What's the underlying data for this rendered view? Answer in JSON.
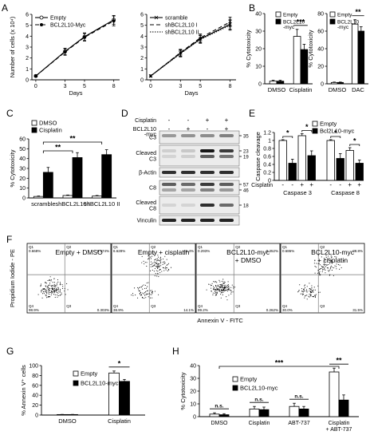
{
  "figure": {
    "panel_letters": [
      "A",
      "B",
      "C",
      "D",
      "E",
      "F",
      "G",
      "H"
    ]
  },
  "chart_data": [
    {
      "id": "A1",
      "type": "line",
      "ylabel": "Number of cells (x 10⁴)",
      "xlabel": "Days",
      "x": [
        0,
        3,
        5,
        8
      ],
      "xticks": [
        "0",
        "3",
        "5",
        "8"
      ],
      "ylim": [
        0,
        6
      ],
      "yticks": [
        0,
        1,
        2,
        3,
        4,
        5,
        6
      ],
      "series": [
        {
          "name": "Empty",
          "marker": "circle-open",
          "dash": "",
          "values": [
            0.35,
            2.6,
            3.95,
            5.5
          ],
          "err": [
            0.1,
            0.3,
            0.35,
            0.4
          ]
        },
        {
          "name": "BCL2L10-Myc",
          "marker": "circle-filled",
          "dash": "5,3",
          "values": [
            0.35,
            2.55,
            3.9,
            5.4
          ],
          "err": [
            0.1,
            0.3,
            0.35,
            0.45
          ]
        }
      ]
    },
    {
      "id": "A2",
      "type": "line",
      "xlabel": "Days",
      "x": [
        0,
        3,
        5,
        8
      ],
      "xticks": [
        "0",
        "3",
        "5",
        "8"
      ],
      "ylim": [
        0,
        6
      ],
      "yticks": [
        0,
        1,
        2,
        3,
        4,
        5,
        6
      ],
      "series": [
        {
          "name": "scramble",
          "marker": "x",
          "dash": "",
          "values": [
            0.35,
            2.45,
            3.75,
            5.1
          ],
          "err": [
            0.1,
            0.3,
            0.35,
            0.45
          ]
        },
        {
          "name": "shBCL2L10 I",
          "marker": "none",
          "dash": "5,3",
          "values": [
            0.35,
            2.5,
            3.85,
            5.3
          ],
          "err": [
            0.1,
            0.3,
            0.35,
            0.45
          ]
        },
        {
          "name": "shBCL2L10 II",
          "marker": "none",
          "dash": "1.5,1.5",
          "values": [
            0.35,
            2.4,
            3.7,
            5.0
          ],
          "err": [
            0.1,
            0.3,
            0.35,
            0.45
          ]
        }
      ]
    },
    {
      "id": "B1",
      "type": "bar",
      "ylabel": "% Cytotoxicity",
      "categories": [
        "DMSO",
        "Cisplatin"
      ],
      "ylim": [
        0,
        40
      ],
      "yticks": [
        0,
        10,
        20,
        30,
        40
      ],
      "series": [
        {
          "name": "Empty",
          "color": "#ffffff",
          "values": [
            1.5,
            27
          ],
          "err": [
            0.5,
            4
          ]
        },
        {
          "name": "BCL2L10\n-myc",
          "color": "#000000",
          "values": [
            1.5,
            19.5
          ],
          "err": [
            0.5,
            3
          ]
        }
      ],
      "significance": [
        {
          "label": "***",
          "category": 1
        }
      ]
    },
    {
      "id": "B2",
      "type": "bar",
      "ylabel": "% Cytotoxicity",
      "categories": [
        "DMSO",
        "DAC"
      ],
      "ylim": [
        0,
        80
      ],
      "yticks": [
        0,
        20,
        40,
        60,
        80
      ],
      "series": [
        {
          "name": "Empty",
          "color": "#ffffff",
          "values": [
            1.5,
            68
          ],
          "err": [
            0.5,
            5
          ]
        },
        {
          "name": "BCL2L10\n-myc",
          "color": "#000000",
          "values": [
            1.5,
            60
          ],
          "err": [
            0.5,
            5
          ]
        }
      ],
      "significance": [
        {
          "label": "**",
          "category": 1
        }
      ]
    },
    {
      "id": "C",
      "type": "bar",
      "ylabel": "% Cytotoxicity",
      "categories": [
        "scramble",
        "shBCL2L10 I",
        "shBCL2L10 II"
      ],
      "ylim": [
        0,
        60
      ],
      "yticks": [
        0,
        10,
        20,
        30,
        40,
        50,
        60
      ],
      "series": [
        {
          "name": "DMSO",
          "color": "#ffffff",
          "values": [
            1.5,
            2.5,
            2.0
          ],
          "err": [
            0.5,
            0.5,
            0.5
          ]
        },
        {
          "name": "Cisplatin",
          "color": "#000000",
          "values": [
            26,
            41,
            44
          ],
          "err": [
            5,
            5,
            5
          ]
        }
      ],
      "significance": [
        {
          "label": "**",
          "from": 0,
          "to": 1
        },
        {
          "label": "**",
          "from": 0,
          "to": 2
        }
      ]
    },
    {
      "id": "E",
      "type": "bar",
      "ylabel": "Caspase cleavage",
      "groups": [
        "Caspase 3",
        "Caspase 8"
      ],
      "cisplatin_signs": [
        "-",
        "-",
        "+",
        "+",
        "-",
        "-",
        "+",
        "+"
      ],
      "cisplatin_label": "Cisplatin",
      "ylim": [
        0,
        1.2
      ],
      "yticks": [
        0,
        0.2,
        0.4,
        0.6,
        0.8,
        1.0,
        1.2
      ],
      "series": [
        {
          "name": "Empty",
          "color": "#ffffff"
        },
        {
          "name": "Bcl2L10-myc",
          "color": "#000000"
        }
      ],
      "bars": [
        {
          "group": 0,
          "series": 0,
          "value": 1.0,
          "err": 0.02
        },
        {
          "group": 0,
          "series": 1,
          "value": 0.43,
          "err": 0.1
        },
        {
          "group": 0,
          "series": 0,
          "value": 1.12,
          "err": 0.05
        },
        {
          "group": 0,
          "series": 1,
          "value": 0.62,
          "err": 0.12
        },
        {
          "group": 1,
          "series": 0,
          "value": 1.0,
          "err": 0.02
        },
        {
          "group": 1,
          "series": 1,
          "value": 0.55,
          "err": 0.12
        },
        {
          "group": 1,
          "series": 0,
          "value": 0.75,
          "err": 0.07
        },
        {
          "group": 1,
          "series": 1,
          "value": 0.43,
          "err": 0.08
        }
      ],
      "significance": [
        {
          "label": "*",
          "from": 0,
          "to": 1
        },
        {
          "label": "*",
          "from": 2,
          "to": 3
        },
        {
          "label": "*",
          "from": 4,
          "to": 5
        },
        {
          "label": "*",
          "from": 6,
          "to": 7
        }
      ]
    },
    {
      "id": "G",
      "type": "bar",
      "ylabel": "% Annexin V⁺ cells",
      "categories": [
        "DMSO",
        "Cisplatin"
      ],
      "ylim": [
        0,
        100
      ],
      "yticks": [
        0,
        20,
        40,
        60,
        80,
        100
      ],
      "series": [
        {
          "name": "Empty",
          "color": "#ffffff",
          "values": [
            1.0,
            85
          ],
          "err": [
            0.3,
            4
          ]
        },
        {
          "name": "BCL2L10-myc",
          "color": "#000000",
          "values": [
            1.0,
            68
          ],
          "err": [
            0.3,
            4
          ]
        }
      ],
      "significance": [
        {
          "label": "*",
          "category": 1
        }
      ]
    },
    {
      "id": "H",
      "type": "bar",
      "ylabel": "% Cytotoxicity",
      "categories": [
        "DMSO",
        "Cisplatin",
        "ABT-737",
        "Cisplatin\n+ ABT-737"
      ],
      "ylim": [
        0,
        40
      ],
      "yticks": [
        0,
        10,
        20,
        30,
        40
      ],
      "series": [
        {
          "name": "Empty",
          "color": "#ffffff",
          "values": [
            2,
            6,
            8,
            35
          ],
          "err": [
            1,
            2,
            2.5,
            3
          ]
        },
        {
          "name": "BCL2L10-myc",
          "color": "#000000",
          "values": [
            1.5,
            5.5,
            6,
            13
          ],
          "err": [
            0.8,
            2,
            2,
            4
          ]
        }
      ],
      "significance": [
        {
          "label": "n.s.",
          "category": 0
        },
        {
          "label": "n.s.",
          "category": 1
        },
        {
          "label": "n.s.",
          "category": 2
        },
        {
          "label": "**",
          "category": 3
        },
        {
          "label": "***",
          "from": 0,
          "to": 3
        }
      ]
    }
  ],
  "flow": {
    "ylabel": "Propidium Iodide - PE",
    "xlabel": "Annexin V - FITC",
    "panels": [
      {
        "title": [
          "Empty + DMSO"
        ],
        "q1": "0.668%",
        "q2": "0.174%",
        "q3": "0.303%",
        "q4": "98.9%"
      },
      {
        "title": [
          "Empty + cisplatin"
        ],
        "q1": "6.628%",
        "q2": "46.4%",
        "q3": "14.1%",
        "q4": "38.9%"
      },
      {
        "title": [
          "BCL2L10-myc",
          "+ DMSO"
        ],
        "q1": "0.293%",
        "q2": "0.352%",
        "q3": "0.262%",
        "q4": "99.2%"
      },
      {
        "title": [
          "BCL2L10-myc",
          "+ cisplatin"
        ],
        "q1": "0.686%",
        "q2": "38.8%",
        "q3": "31.5%",
        "q4": "30.0%"
      }
    ]
  },
  "blot": {
    "conditions": [
      {
        "label": "Cisplatin",
        "signs": [
          "-",
          "-",
          "+",
          "+"
        ]
      },
      {
        "label": "BCL2L10\n-myc",
        "signs": [
          "-",
          "+",
          "-",
          "+"
        ]
      }
    ],
    "rows": [
      {
        "label": "C3",
        "markers": [
          "35"
        ]
      },
      {
        "label": "Cleaved\nC3",
        "markers": [
          "23",
          "19"
        ]
      },
      {
        "label": "β-Actin",
        "markers": []
      },
      {
        "label": "C8",
        "markers": [
          "57",
          "46"
        ]
      },
      {
        "label": "Cleaved\nC8",
        "markers": [
          "18"
        ]
      },
      {
        "label": "Vinculin",
        "markers": []
      }
    ]
  }
}
